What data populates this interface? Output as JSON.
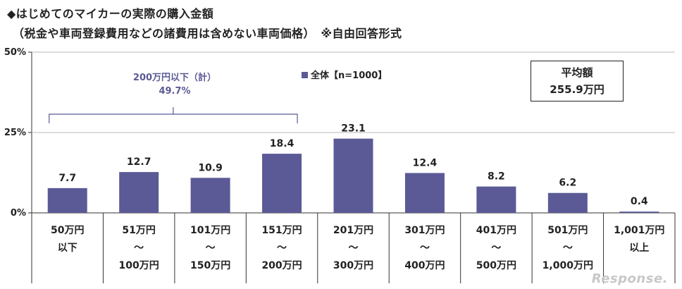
{
  "header": {
    "title": "◆はじめてのマイカーの実際の購入金額",
    "subtitle": "（税金や車両登録費用などの諸費用は含めない車両価格）　※自由回答形式"
  },
  "legend": {
    "label": "全体【n=1000】",
    "color": "#5b5a96"
  },
  "average": {
    "label": "平均額",
    "value": "255.9万円"
  },
  "bracket": {
    "label": "200万円以下（計）",
    "value": "49.7%"
  },
  "watermark": "Response.",
  "chart_data": {
    "type": "bar",
    "title": "はじめてのマイカーの実際の購入金額",
    "categories": [
      [
        "50万円",
        "以下"
      ],
      [
        "51万円",
        "～",
        "100万円"
      ],
      [
        "101万円",
        "～",
        "150万円"
      ],
      [
        "151万円",
        "～",
        "200万円"
      ],
      [
        "201万円",
        "～",
        "300万円"
      ],
      [
        "301万円",
        "～",
        "400万円"
      ],
      [
        "401万円",
        "～",
        "500万円"
      ],
      [
        "501万円",
        "～",
        "1,000万円"
      ],
      [
        "1,001万円",
        "以上"
      ]
    ],
    "values": [
      7.7,
      12.7,
      10.9,
      18.4,
      23.1,
      12.4,
      8.2,
      6.2,
      0.4
    ],
    "value_labels": [
      "7.7",
      "12.7",
      "10.9",
      "18.4",
      "23.1",
      "12.4",
      "8.2",
      "6.2",
      "0.4"
    ],
    "series_name": "全体【n=1000】",
    "ylim": [
      0,
      50
    ],
    "yticks": [
      "0%",
      "25%",
      "50%"
    ],
    "ytick_values": [
      0,
      25,
      50
    ],
    "bar_color": "#5b5a96"
  }
}
